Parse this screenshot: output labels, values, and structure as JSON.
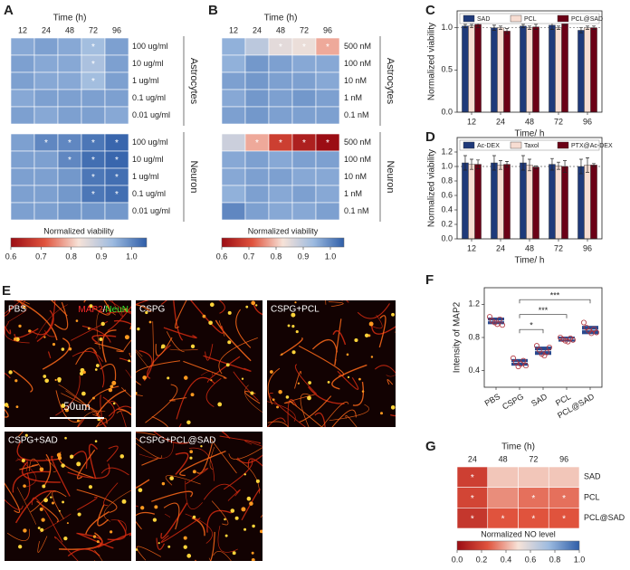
{
  "panel_labels": [
    "A",
    "B",
    "C",
    "D",
    "E",
    "F",
    "G"
  ],
  "images": {
    "panels": [
      {
        "label": "PBS"
      },
      {
        "label": "CSPG"
      },
      {
        "label": "CSPG+PCL"
      },
      {
        "label": "CSPG+SAD"
      },
      {
        "label": "CSPG+PCL@SAD"
      }
    ],
    "stain": {
      "primary": "MAP2",
      "separator": "/",
      "secondary": "NeuN"
    },
    "scale_bar": "50um"
  },
  "chart_data": [
    {
      "type": "heatmap",
      "title": "Time (h)",
      "categories": [
        "12",
        "24",
        "48",
        "72",
        "96"
      ],
      "rows": [
        "100 ug/ml",
        "10 ug/ml",
        "1 ug/ml",
        "0.1 ug/ml",
        "0.01 ug/ml"
      ],
      "group": "Astrocytes",
      "values": [
        [
          0.96,
          0.97,
          0.96,
          0.93,
          0.97
        ],
        [
          0.97,
          0.96,
          0.96,
          0.92,
          0.97
        ],
        [
          0.97,
          0.96,
          0.96,
          0.93,
          0.97
        ],
        [
          0.96,
          0.97,
          0.97,
          0.97,
          0.97
        ],
        [
          0.97,
          0.96,
          0.97,
          0.97,
          0.96
        ]
      ],
      "stars": [
        [
          null,
          null,
          null,
          "*",
          null
        ],
        [
          null,
          null,
          null,
          "*",
          null
        ],
        [
          null,
          null,
          null,
          "*",
          null
        ],
        [
          null,
          null,
          null,
          null,
          null
        ],
        [
          null,
          null,
          null,
          null,
          null
        ]
      ],
      "clim": [
        0.6,
        1.05
      ],
      "colormap": [
        "#9b0d14",
        "#e0533d",
        "#f7e3d8",
        "#9dbbe0",
        "#2f5ea8"
      ]
    },
    {
      "type": "heatmap",
      "rows": [
        "100 ug/ml",
        "10 ug/ml",
        "1 ug/ml",
        "0.1 ug/ml",
        "0.01 ug/ml"
      ],
      "group": "Neuron",
      "values": [
        [
          0.97,
          1.0,
          1.0,
          1.02,
          1.04
        ],
        [
          0.97,
          0.97,
          1.0,
          1.03,
          1.04
        ],
        [
          0.97,
          0.97,
          0.98,
          1.02,
          1.03
        ],
        [
          0.97,
          0.97,
          0.98,
          1.02,
          1.03
        ],
        [
          0.97,
          0.97,
          0.98,
          0.98,
          0.98
        ]
      ],
      "stars": [
        [
          null,
          "*",
          "*",
          "*",
          "*"
        ],
        [
          null,
          null,
          "*",
          "*",
          "*"
        ],
        [
          null,
          null,
          null,
          "*",
          "*"
        ],
        [
          null,
          null,
          null,
          "*",
          "*"
        ],
        [
          null,
          null,
          null,
          null,
          null
        ]
      ],
      "clim": [
        0.6,
        1.05
      ],
      "colormap": [
        "#9b0d14",
        "#e0533d",
        "#f7e3d8",
        "#9dbbe0",
        "#2f5ea8"
      ]
    },
    {
      "type": "colorbar",
      "label": "Normalized viability",
      "clim": [
        0.6,
        1.05
      ],
      "ticks": [
        0.6,
        0.7,
        0.8,
        0.9,
        {
          "value": 1,
          "label": "1.0"
        }
      ],
      "colormap": [
        "#9b0d14",
        "#e0533d",
        "#f7e3d8",
        "#9dbbe0",
        "#2f5ea8"
      ]
    },
    {
      "type": "heatmap",
      "title": "Time (h)",
      "categories": [
        "12",
        "24",
        "48",
        "72",
        "96"
      ],
      "rows": [
        "500 nM",
        "100 nM",
        "10 nM",
        "1 nM",
        "0.1 nM"
      ],
      "group": "Astrocytes",
      "values": [
        [
          0.95,
          0.9,
          0.85,
          0.84,
          0.78
        ],
        [
          0.95,
          0.98,
          0.97,
          0.96,
          0.96
        ],
        [
          0.97,
          0.98,
          0.97,
          0.97,
          0.96
        ],
        [
          0.96,
          0.98,
          0.97,
          0.98,
          0.97
        ],
        [
          0.97,
          0.98,
          0.97,
          0.97,
          0.97
        ]
      ],
      "stars": [
        [
          null,
          null,
          "*",
          "*",
          "*"
        ],
        [
          null,
          null,
          null,
          null,
          null
        ],
        [
          null,
          null,
          null,
          null,
          null
        ],
        [
          null,
          null,
          null,
          null,
          null
        ],
        [
          null,
          null,
          null,
          null,
          null
        ]
      ],
      "clim": [
        0.6,
        1.05
      ],
      "colormap": [
        "#9b0d14",
        "#e0533d",
        "#f7e3d8",
        "#9dbbe0",
        "#2f5ea8"
      ]
    },
    {
      "type": "heatmap",
      "rows": [
        "500 nM",
        "100 nM",
        "10 nM",
        "1 nM",
        "0.1 nM"
      ],
      "group": "Neuron",
      "values": [
        [
          0.88,
          0.78,
          0.68,
          0.63,
          0.56
        ],
        [
          0.96,
          0.97,
          0.96,
          0.97,
          0.97
        ],
        [
          0.96,
          0.97,
          0.97,
          0.96,
          0.96
        ],
        [
          0.95,
          0.97,
          0.96,
          0.97,
          0.96
        ],
        [
          1.0,
          0.97,
          0.96,
          0.96,
          0.97
        ]
      ],
      "stars": [
        [
          null,
          "*",
          "*",
          "*",
          "*"
        ],
        [
          null,
          null,
          null,
          null,
          null
        ],
        [
          null,
          null,
          null,
          null,
          null
        ],
        [
          null,
          null,
          null,
          null,
          null
        ],
        [
          null,
          null,
          null,
          null,
          null
        ]
      ],
      "clim": [
        0.6,
        1.05
      ],
      "colormap": [
        "#9b0d14",
        "#e0533d",
        "#f7e3d8",
        "#9dbbe0",
        "#2f5ea8"
      ]
    },
    {
      "type": "colorbar",
      "label": "Normalized viability",
      "clim": [
        0.6,
        1.05
      ],
      "ticks": [
        0.6,
        0.7,
        0.8,
        0.9,
        {
          "value": 1,
          "label": "1.0"
        }
      ],
      "colormap": [
        "#9b0d14",
        "#e0533d",
        "#f7e3d8",
        "#9dbbe0",
        "#2f5ea8"
      ]
    },
    {
      "type": "bar",
      "categories": [
        "12",
        "24",
        "48",
        "72",
        "96"
      ],
      "x_label": "Time/ h",
      "y_label": "Normalized viability",
      "ylim": [
        0,
        1.2
      ],
      "yticks": [
        {
          "value": 0,
          "label": "0.0"
        },
        0.5,
        {
          "value": 1,
          "label": "1.0"
        }
      ],
      "reference_line": 1,
      "series": [
        {
          "name": "SAD",
          "color": "#1f3a7a",
          "values": [
            1.02,
            1.0,
            1.02,
            1.03,
            0.97
          ],
          "errors": [
            0.02,
            0.03,
            0.02,
            0.05,
            0.03
          ]
        },
        {
          "name": "PCL",
          "color": "#f7ddd2",
          "values": [
            1.02,
            1.0,
            1.0,
            1.0,
            1.0
          ],
          "errors": [
            0.02,
            0.02,
            0.02,
            0.02,
            0.02
          ]
        },
        {
          "name": "PCL@SAD",
          "color": "#6b0016",
          "values": [
            1.04,
            0.96,
            1.01,
            1.05,
            1.0
          ],
          "errors": [
            0.04,
            0.03,
            0.03,
            0.02,
            0.02
          ]
        }
      ]
    },
    {
      "type": "bar",
      "categories": [
        "12",
        "24",
        "48",
        "72",
        "96"
      ],
      "x_label": "Time/ h",
      "y_label": "Normalized viability",
      "ylim": [
        0,
        1.4
      ],
      "yticks": [
        {
          "value": 0,
          "label": "0.0"
        },
        0.2,
        0.4,
        0.6,
        0.8,
        {
          "value": 1,
          "label": "1.0"
        },
        1.2
      ],
      "reference_line": 1,
      "series": [
        {
          "name": "Ac-DEX",
          "color": "#1f3a7a",
          "values": [
            1.05,
            1.05,
            1.05,
            1.03,
            1.0
          ],
          "errors": [
            0.1,
            0.1,
            0.1,
            0.08,
            0.1
          ]
        },
        {
          "name": "Taxol",
          "color": "#f7ddd2",
          "values": [
            1.03,
            1.02,
            1.02,
            1.01,
            1.02
          ],
          "errors": [
            0.07,
            0.06,
            0.08,
            0.05,
            0.1
          ]
        },
        {
          "name": "PTX@Ac-DEX",
          "color": "#6b0016",
          "values": [
            1.03,
            1.03,
            0.99,
            1.0,
            1.02
          ],
          "errors": [
            0.06,
            0.04,
            0.02,
            0.08,
            0.02
          ]
        }
      ]
    },
    {
      "type": "box-scatter",
      "categories": [
        "PBS",
        "CSPG",
        "SAD",
        "PCL",
        "PCL@SAD"
      ],
      "y_label": "Intensity of MAP2",
      "ylim": [
        0.2,
        1.4
      ],
      "yticks": [
        0.4,
        0.8,
        1.2
      ],
      "color": "#2a4a8f",
      "point_color": "#b0303a",
      "means": [
        1.0,
        0.5,
        0.64,
        0.78,
        0.89
      ],
      "sd": [
        0.04,
        0.04,
        0.05,
        0.03,
        0.05
      ],
      "points": [
        [
          1.05,
          1.0,
          0.98,
          0.96,
          1.02,
          0.95
        ],
        [
          0.55,
          0.5,
          0.45,
          0.48,
          0.52,
          0.46
        ],
        [
          0.7,
          0.65,
          0.6,
          0.58,
          0.62,
          0.68
        ],
        [
          0.8,
          0.78,
          0.76,
          0.75,
          0.79,
          0.77
        ],
        [
          0.98,
          0.92,
          0.88,
          0.85,
          0.9,
          0.86
        ]
      ],
      "comparisons": [
        {
          "from": "CSPG",
          "to": "SAD",
          "label": "*"
        },
        {
          "from": "CSPG",
          "to": "PCL",
          "label": "***"
        },
        {
          "from": "CSPG",
          "to": "PCL@SAD",
          "label": "***"
        }
      ]
    },
    {
      "type": "heatmap",
      "title": "Time (h)",
      "categories": [
        "24",
        "48",
        "72",
        "96"
      ],
      "rows": [
        "SAD",
        "PCL",
        "PCL@SAD"
      ],
      "values": [
        [
          0.18,
          0.45,
          0.45,
          0.45
        ],
        [
          0.2,
          0.35,
          0.3,
          0.3
        ],
        [
          0.15,
          0.25,
          0.25,
          0.25
        ]
      ],
      "stars": [
        [
          "*",
          null,
          null,
          null
        ],
        [
          "*",
          null,
          "*",
          "*"
        ],
        [
          "*",
          "*",
          "*",
          "*"
        ]
      ],
      "clim": [
        0,
        1
      ],
      "colormap": [
        "#9b0d14",
        "#e0533d",
        "#f7e3d8",
        "#9dbbe0",
        "#2f5ea8"
      ]
    },
    {
      "type": "colorbar",
      "label": "Normalized NO level",
      "clim": [
        0,
        1
      ],
      "ticks": [
        {
          "value": 0,
          "label": "0.0"
        },
        0.2,
        0.4,
        0.6,
        0.8,
        {
          "value": 1,
          "label": "1.0"
        }
      ],
      "colormap": [
        "#9b0d14",
        "#e0533d",
        "#f7e3d8",
        "#9dbbe0",
        "#2f5ea8"
      ]
    }
  ]
}
